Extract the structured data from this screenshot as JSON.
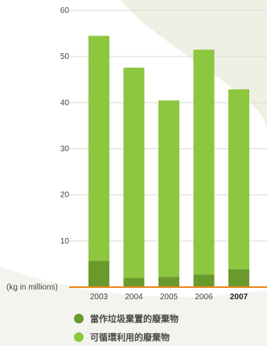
{
  "chart_data": {
    "type": "bar",
    "stacked": true,
    "unit_label": "(kg in millions)",
    "categories": [
      "2003",
      "2004",
      "2005",
      "2006",
      "2007"
    ],
    "highlight_category": "2007",
    "y_ticks": [
      "10",
      "20",
      "30",
      "40",
      "50",
      "60"
    ],
    "ylim": [
      0,
      60
    ],
    "series": [
      {
        "name": "當作垃圾棄置的廢棄物",
        "color": "#6b9a2c",
        "values": [
          5.7,
          2.0,
          2.2,
          2.7,
          3.9
        ]
      },
      {
        "name": "可循環利用的廢棄物",
        "color": "#8dc63f",
        "values": [
          48.8,
          45.6,
          38.3,
          48.8,
          39.0
        ]
      }
    ],
    "grid": true,
    "legend_position": "bottom"
  },
  "colors": {
    "baseline": "#e8891f",
    "grid": "#d9dcd3",
    "background_accent": "#e6ead9"
  }
}
